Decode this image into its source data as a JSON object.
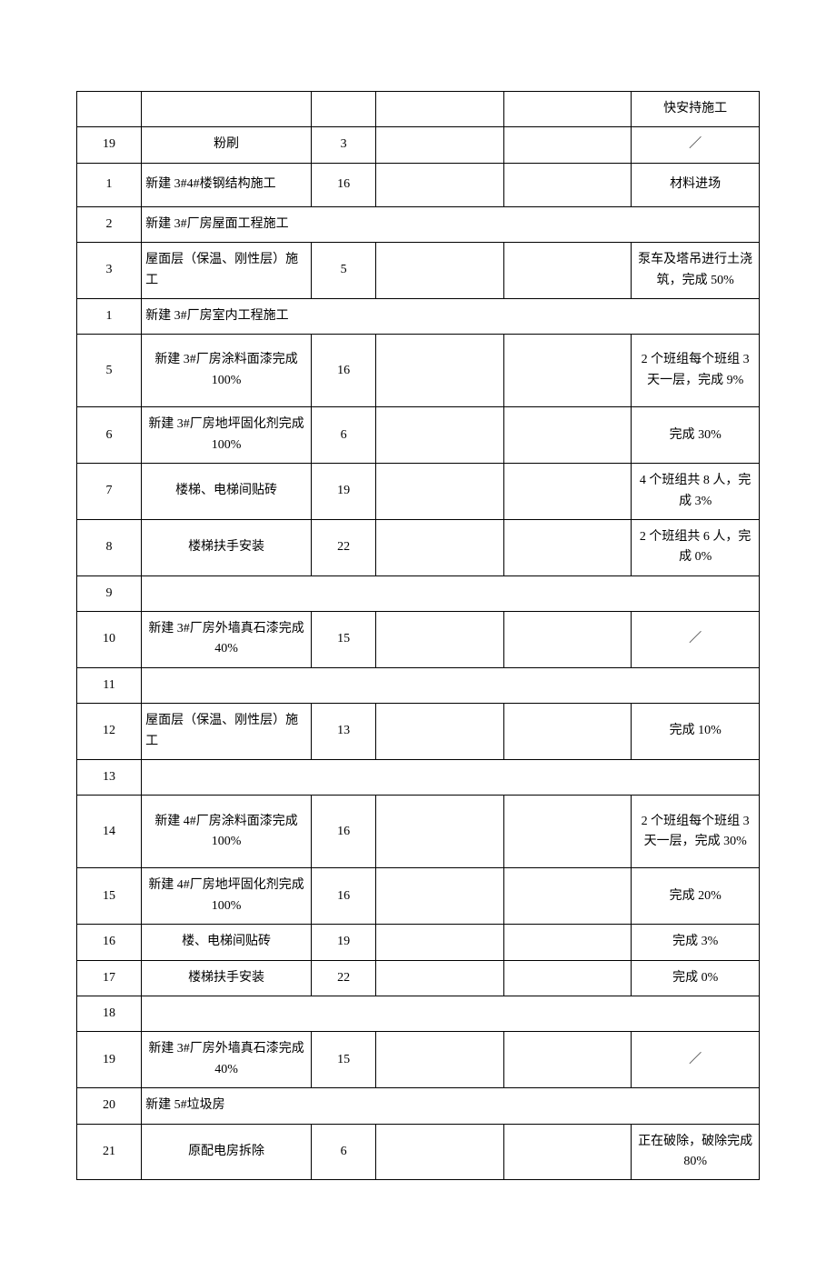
{
  "table": {
    "colors": {
      "border": "#000000",
      "background": "#ffffff",
      "text": "#000000"
    },
    "font_size_pt": 10.5,
    "column_widths_pct": [
      8,
      23,
      8,
      17,
      17,
      17
    ],
    "rows": [
      {
        "num": "",
        "desc": "",
        "desc_align": "center",
        "val": "",
        "c4": "",
        "c5": "",
        "note": "快安持施工",
        "merged": false,
        "height": "short"
      },
      {
        "num": "19",
        "desc": "粉刷",
        "desc_align": "center",
        "val": "3",
        "c4": "",
        "c5": "",
        "note": "／",
        "merged": false,
        "height": "short"
      },
      {
        "num": "1",
        "desc": "新建 3#4#楼钢结构施工",
        "desc_align": "left",
        "val": "16",
        "c4": "",
        "c5": "",
        "note": "材料进场",
        "merged": false,
        "height": "med"
      },
      {
        "num": "2",
        "desc": "新建 3#厂房屋面工程施工",
        "desc_align": "left",
        "merged": true,
        "height": "short"
      },
      {
        "num": "3",
        "desc": "屋面层（保温、刚性层）施工",
        "desc_align": "left",
        "val": "5",
        "c4": "",
        "c5": "",
        "note": "泵车及塔吊进行土浇筑，完成 50%",
        "merged": false,
        "height": "med"
      },
      {
        "num": "1",
        "desc": "新建 3#厂房室内工程施工",
        "desc_align": "left",
        "merged": true,
        "height": "short"
      },
      {
        "num": "5",
        "desc": "新建 3#厂房涂料面漆完成 100%",
        "desc_align": "center",
        "val": "16",
        "c4": "",
        "c5": "",
        "note": "2 个班组每个班组 3 天一层，完成 9%",
        "merged": false,
        "height": "tall"
      },
      {
        "num": "6",
        "desc": "新建 3#厂房地坪固化剂完成 100%",
        "desc_align": "center",
        "val": "6",
        "c4": "",
        "c5": "",
        "note": "完成 30%",
        "merged": false,
        "height": "med"
      },
      {
        "num": "7",
        "desc": "楼梯、电梯间贴砖",
        "desc_align": "center",
        "val": "19",
        "c4": "",
        "c5": "",
        "note": "4 个班组共 8 人，完成 3%",
        "merged": false,
        "height": "med"
      },
      {
        "num": "8",
        "desc": "楼梯扶手安装",
        "desc_align": "center",
        "val": "22",
        "c4": "",
        "c5": "",
        "note": "2 个班组共 6 人，完成 0%",
        "merged": false,
        "height": "med"
      },
      {
        "num": "9",
        "desc": "",
        "desc_align": "left",
        "merged": true,
        "height": "short"
      },
      {
        "num": "10",
        "desc": "新建 3#厂房外墙真石漆完成 40%",
        "desc_align": "center",
        "val": "15",
        "c4": "",
        "c5": "",
        "note": "／",
        "merged": false,
        "height": "med"
      },
      {
        "num": "11",
        "desc": "",
        "desc_align": "left",
        "merged": true,
        "height": "short"
      },
      {
        "num": "12",
        "desc": "屋面层（保温、刚性层）施工",
        "desc_align": "left",
        "val": "13",
        "c4": "",
        "c5": "",
        "note": "完成 10%",
        "merged": false,
        "height": "med"
      },
      {
        "num": "13",
        "desc": "",
        "desc_align": "left",
        "merged": true,
        "height": "short"
      },
      {
        "num": "14",
        "desc": "新建 4#厂房涂料面漆完成 100%",
        "desc_align": "center",
        "val": "16",
        "c4": "",
        "c5": "",
        "note": "2 个班组每个班组 3 天一层，完成 30%",
        "merged": false,
        "height": "tall"
      },
      {
        "num": "15",
        "desc": "新建 4#厂房地坪固化剂完成 100%",
        "desc_align": "center",
        "val": "16",
        "c4": "",
        "c5": "",
        "note": "完成 20%",
        "merged": false,
        "height": "med"
      },
      {
        "num": "16",
        "desc": "楼、电梯间贴砖",
        "desc_align": "center",
        "val": "19",
        "c4": "",
        "c5": "",
        "note": "完成 3%",
        "merged": false,
        "height": "short"
      },
      {
        "num": "17",
        "desc": "楼梯扶手安装",
        "desc_align": "center",
        "val": "22",
        "c4": "",
        "c5": "",
        "note": "完成 0%",
        "merged": false,
        "height": "short"
      },
      {
        "num": "18",
        "desc": "",
        "desc_align": "left",
        "merged": true,
        "height": "short"
      },
      {
        "num": "19",
        "desc": "新建 3#厂房外墙真石漆完成 40%",
        "desc_align": "center",
        "val": "15",
        "c4": "",
        "c5": "",
        "note": "／",
        "merged": false,
        "height": "med"
      },
      {
        "num": "20",
        "desc": "新建 5#垃圾房",
        "desc_align": "left",
        "merged": true,
        "height": "short"
      },
      {
        "num": "21",
        "desc": "原配电房拆除",
        "desc_align": "center",
        "val": "6",
        "c4": "",
        "c5": "",
        "note": "正在破除，破除完成 80%",
        "merged": false,
        "height": "med"
      }
    ]
  }
}
